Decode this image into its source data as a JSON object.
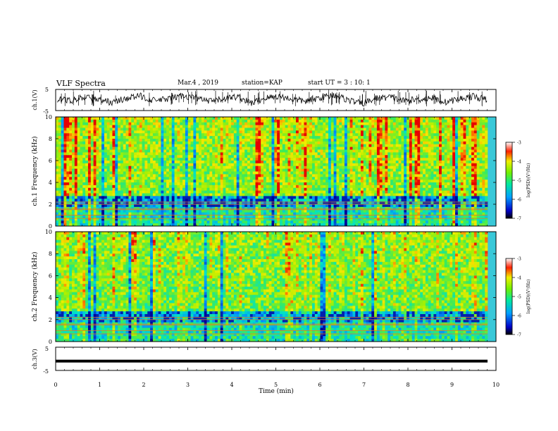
{
  "header": {
    "title": "VLF Spectra",
    "date": "Mar.4 , 2019",
    "station": "station=KAP",
    "start": "start  UT =  3 : 10: 1"
  },
  "chart_data": [
    {
      "type": "line",
      "title": "",
      "ylabel": "ch.1(V)",
      "ylim": [
        -5,
        5
      ],
      "yticks": [
        "5",
        "-5"
      ],
      "xlim": [
        0,
        10
      ],
      "series": [
        {
          "values": [
            0.5,
            -0.5,
            1.5,
            0.2,
            -1.2,
            0.8,
            1.9,
            -0.3,
            0.4,
            2.1,
            1.0,
            -0.8,
            0.6,
            1.6,
            -1.5,
            0.9,
            1.8,
            0.3,
            -0.6,
            1.2,
            2.4,
            0.0,
            -1.8,
            0.7,
            1.4,
            -0.4,
            0.2,
            1.1,
            -1.0,
            0.5,
            1.7,
            0.1
          ]
        }
      ]
    },
    {
      "type": "heatmap",
      "title": "",
      "ylabel": "ch.1 Frequency (kHz)",
      "ylim": [
        0,
        10
      ],
      "yticks": [
        "0",
        "2",
        "4",
        "6",
        "8",
        "10"
      ],
      "xlim": [
        0,
        10
      ],
      "colorbar": {
        "label": "log(PSD)(V²/Hz)",
        "ticks": [
          "-3",
          "-4",
          "-5",
          "-6",
          "-7"
        ],
        "range": [
          -7,
          -3
        ]
      }
    },
    {
      "type": "heatmap",
      "title": "",
      "ylabel": "ch.2 Frequency (kHz)",
      "ylim": [
        0,
        10
      ],
      "yticks": [
        "0",
        "2",
        "4",
        "6",
        "8",
        "10"
      ],
      "xlim": [
        0,
        10
      ],
      "colorbar": {
        "label": "log(PSD)(V²/Hz)",
        "ticks": [
          "-3",
          "-4",
          "-5",
          "-6",
          "-7"
        ],
        "range": [
          -7,
          -3
        ]
      }
    },
    {
      "type": "line",
      "title": "",
      "ylabel": "ch.3(V)",
      "ylim": [
        -5,
        5
      ],
      "yticks": [
        "5",
        "-5"
      ],
      "xlim": [
        0,
        10
      ],
      "series": [
        {
          "values": [
            -1,
            -1,
            -1,
            -1,
            -1,
            -1,
            -1,
            -1,
            -1,
            -1,
            -1
          ]
        }
      ]
    }
  ],
  "xaxis": {
    "label": "Time (min)",
    "ticks": [
      "0",
      "1",
      "2",
      "3",
      "4",
      "5",
      "6",
      "7",
      "8",
      "9",
      "10"
    ]
  }
}
